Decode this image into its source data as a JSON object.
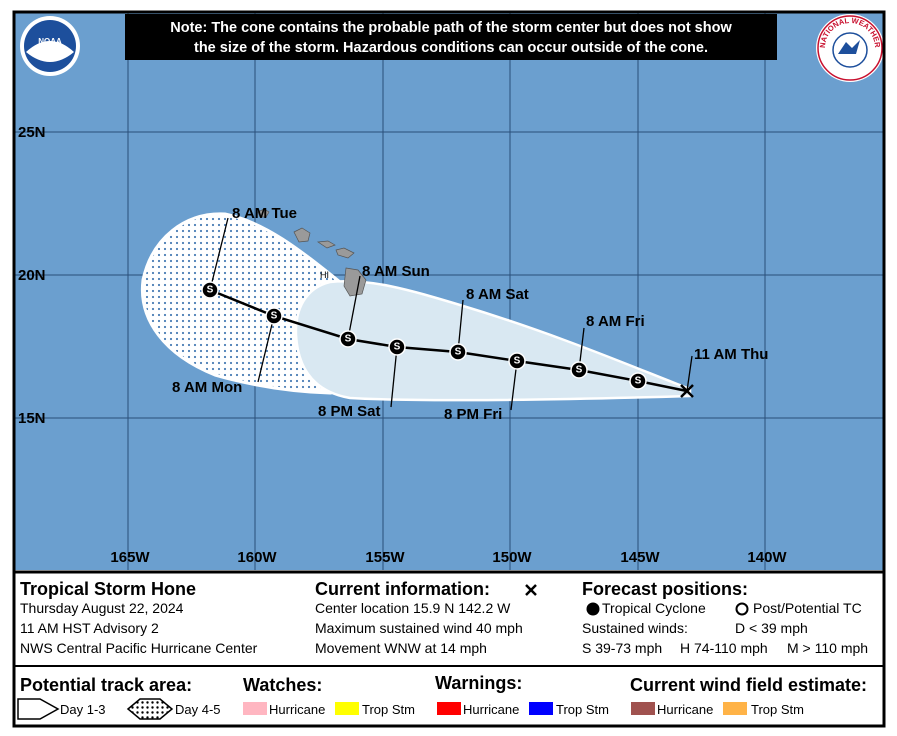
{
  "note": [
    "Note: The cone contains the probable path of the storm center but does not show",
    "the size of the storm. Hazardous conditions can occur outside of the cone."
  ],
  "logos": {
    "noaa": "NOAA",
    "nws": "NATIONAL WEATHER SERVICE"
  },
  "map": {
    "lat_labels": [
      "25N",
      "20N",
      "15N"
    ],
    "lon_labels": [
      "165W",
      "160W",
      "155W",
      "150W",
      "145W",
      "140W"
    ],
    "island_label": "HI",
    "storm_symbol": "S",
    "points": [
      "11 AM Thu",
      "8 AM Fri",
      "8 PM Fri",
      "8 AM Sat",
      "8 PM Sat",
      "8 AM Sun",
      "8 AM Mon",
      "8 AM Tue"
    ]
  },
  "storm": {
    "name": "Tropical Storm Hone",
    "date": "Thursday August 22, 2024",
    "advisory": "11 AM HST Advisory 2",
    "center": "NWS Central Pacific Hurricane Center"
  },
  "current": {
    "title": "Current information:",
    "location": "Center location 15.9 N 142.2 W",
    "wind": "Maximum sustained wind 40 mph",
    "movement": "Movement WNW at 14 mph"
  },
  "forecast": {
    "title": "Forecast positions:",
    "tc": "Tropical Cyclone",
    "post": "Post/Potential TC",
    "winds": "Sustained winds:",
    "d": "D < 39 mph",
    "s": "S 39-73 mph",
    "h": "H 74-110 mph",
    "m": "M > 110 mph"
  },
  "legend": {
    "track": {
      "title": "Potential track area:",
      "day13": "Day 1-3",
      "day45": "Day 4-5"
    },
    "watches": {
      "title": "Watches:",
      "hurricane": "Hurricane",
      "trop": "Trop Stm"
    },
    "warnings": {
      "title": "Warnings:",
      "hurricane": "Hurricane",
      "trop": "Trop Stm"
    },
    "wind": {
      "title": "Current wind field estimate:",
      "hurricane": "Hurricane",
      "trop": "Trop Stm"
    }
  }
}
